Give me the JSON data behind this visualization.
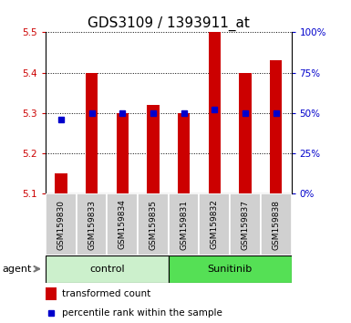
{
  "title": "GDS3109 / 1393911_at",
  "samples": [
    "GSM159830",
    "GSM159833",
    "GSM159834",
    "GSM159835",
    "GSM159831",
    "GSM159832",
    "GSM159837",
    "GSM159838"
  ],
  "groups": [
    "control",
    "control",
    "control",
    "control",
    "Sunitinib",
    "Sunitinib",
    "Sunitinib",
    "Sunitinib"
  ],
  "transformed_count": [
    5.15,
    5.4,
    5.3,
    5.32,
    5.3,
    5.5,
    5.4,
    5.43
  ],
  "percentile_rank": [
    46,
    50,
    50,
    50,
    50,
    52,
    50,
    50
  ],
  "ylim_left": [
    5.1,
    5.5
  ],
  "ylim_right": [
    0,
    100
  ],
  "yticks_left": [
    5.1,
    5.2,
    5.3,
    5.4,
    5.5
  ],
  "yticks_right": [
    0,
    25,
    50,
    75,
    100
  ],
  "bar_color": "#cc0000",
  "dot_color": "#0000cc",
  "bar_bottom": 5.1,
  "control_group_color": "#ccf0cc",
  "sunitinib_group_color": "#55e055",
  "sample_bg_color": "#d0d0d0",
  "agent_label": "agent",
  "legend_bar_label": "transformed count",
  "legend_dot_label": "percentile rank within the sample",
  "title_fontsize": 11,
  "axis_label_color_left": "#cc0000",
  "axis_label_color_right": "#0000cc",
  "bar_width": 0.4
}
